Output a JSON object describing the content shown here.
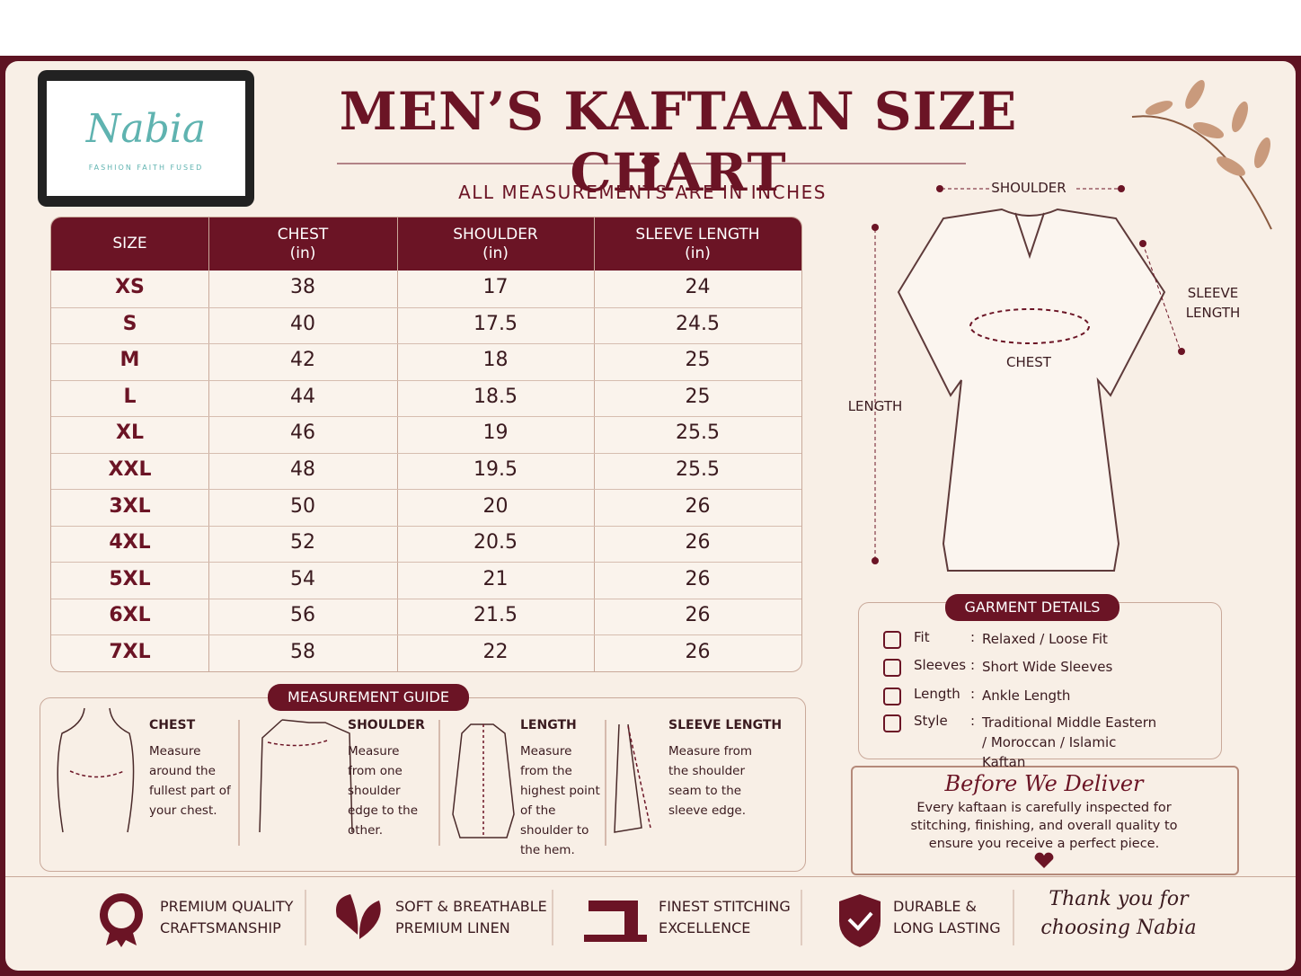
{
  "brand": {
    "name": "Nabia",
    "tagline": "FASHION FAITH FUSED"
  },
  "header": {
    "title": "MEN’S KAFTAAN SIZE CHART",
    "subtitle": "ALL MEASUREMENTS ARE IN INCHES"
  },
  "table": {
    "columns": [
      {
        "label": "SIZE"
      },
      {
        "label": "CHEST",
        "unit": "(in)"
      },
      {
        "label": "SHOULDER",
        "unit": "(in)"
      },
      {
        "label": "SLEEVE LENGTH",
        "unit": "(in)"
      }
    ],
    "rows": [
      [
        "XS",
        38,
        17,
        24
      ],
      [
        "S",
        40,
        17.5,
        24.5
      ],
      [
        "M",
        42,
        18,
        25
      ],
      [
        "L",
        44,
        18.5,
        25
      ],
      [
        "XL",
        46,
        19,
        25.5
      ],
      [
        "XXL",
        48,
        19.5,
        25.5
      ],
      [
        "3XL",
        50,
        20,
        26
      ],
      [
        "4XL",
        52,
        20.5,
        26
      ],
      [
        "5XL",
        54,
        21,
        26
      ],
      [
        "6XL",
        56,
        21.5,
        26
      ],
      [
        "7XL",
        58,
        22,
        26
      ]
    ]
  },
  "diagram": {
    "shoulder": "SHOULDER",
    "sleeve_length": [
      "SLEEVE",
      "LENGTH"
    ],
    "chest": "CHEST",
    "length": "LENGTH"
  },
  "guide": {
    "title": "MEASUREMENT GUIDE",
    "items": [
      {
        "title": "CHEST",
        "text": "Measure around the fullest part of your chest."
      },
      {
        "title": "SHOULDER",
        "text": "Measure from one shoulder edge to the other."
      },
      {
        "title": "LENGTH",
        "text": "Measure from the highest point of the shoulder to the hem."
      },
      {
        "title": "SLEEVE LENGTH",
        "text": "Measure from the shoulder seam to the sleeve edge."
      }
    ]
  },
  "details": {
    "title": "GARMENT DETAILS",
    "separator": ":",
    "items": [
      {
        "label": "Fit",
        "value": "Relaxed / Loose Fit"
      },
      {
        "label": "Sleeves",
        "value": "Short Wide Sleeves"
      },
      {
        "label": "Length",
        "value": "Ankle Length"
      },
      {
        "label": "Style",
        "value": "Traditional Middle Eastern / Moroccan / Islamic Kaftan"
      }
    ]
  },
  "note": {
    "title": "Before We Deliver",
    "text": "Every kaftaan is carefully inspected for stitching, finishing, and overall quality to ensure you receive a perfect piece."
  },
  "footer": {
    "features": [
      [
        "PREMIUM QUALITY",
        "CRAFTSMANSHIP"
      ],
      [
        "SOFT & BREATHABLE",
        "PREMIUM LINEN"
      ],
      [
        "FINEST STITCHING",
        "EXCELLENCE"
      ],
      [
        "DURABLE &",
        "LONG LASTING"
      ]
    ],
    "thanks": [
      "Thank you for",
      "choosing Nabia"
    ]
  }
}
